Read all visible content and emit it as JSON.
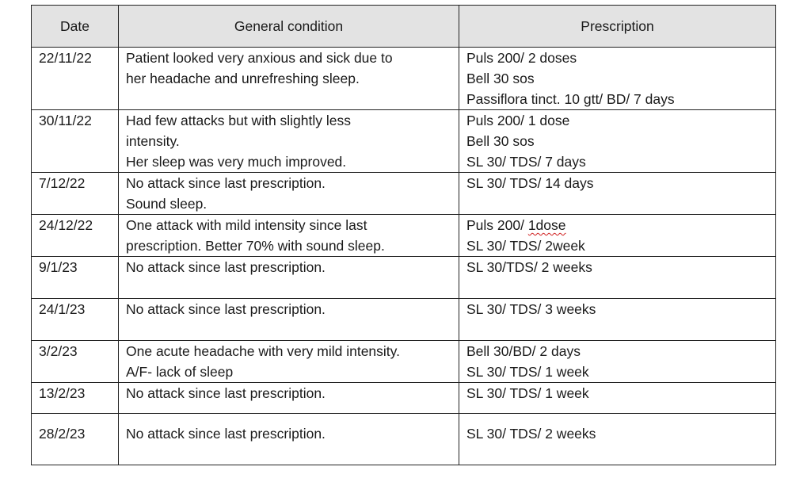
{
  "headers": {
    "date": "Date",
    "condition": "General condition",
    "prescription": "Prescription"
  },
  "rows": [
    {
      "date": "22/11/22",
      "condition": [
        "Patient looked very anxious and sick due to",
        "her headache and unrefreshing sleep."
      ],
      "prescription": [
        "Puls 200/ 2 doses",
        "Bell 30 sos",
        "Passiflora tinct. 10 gtt/ BD/ 7 days"
      ]
    },
    {
      "date": "30/11/22",
      "condition": [
        "Had few attacks but with slightly less",
        "intensity.",
        "Her sleep was very much improved."
      ],
      "prescription": [
        "Puls 200/ 1 dose",
        "Bell 30 sos",
        "SL 30/ TDS/ 7 days"
      ]
    },
    {
      "date": "7/12/22",
      "condition": [
        "No attack since last prescription.",
        "Sound sleep."
      ],
      "prescription": [
        "SL 30/ TDS/ 14 days"
      ]
    },
    {
      "date": "24/12/22",
      "condition": [
        "One attack with mild intensity since last",
        "prescription. Better 70% with sound sleep."
      ],
      "prescription_first_prefix": "Puls 200/ ",
      "prescription_first_flagged": "1dose",
      "prescription": [
        "SL 30/ TDS/ 2week"
      ]
    },
    {
      "date": "9/1/23",
      "condition": [
        "No attack since last prescription."
      ],
      "prescription": [
        "SL 30/TDS/ 2 weeks"
      ]
    },
    {
      "date": "24/1/23",
      "condition": [
        "No attack since last prescription."
      ],
      "prescription": [
        "SL 30/ TDS/ 3 weeks"
      ]
    },
    {
      "date": "3/2/23",
      "condition": [
        "One acute headache with very mild intensity.",
        "A/F- lack of sleep"
      ],
      "prescription": [
        "Bell 30/BD/ 2 days",
        "SL 30/ TDS/ 1 week"
      ]
    },
    {
      "date": "13/2/23",
      "condition": [
        "No attack since last prescription."
      ],
      "prescription": [
        "SL 30/ TDS/ 1 week"
      ]
    },
    {
      "date": "28/2/23",
      "condition": [
        "No attack since last prescription."
      ],
      "prescription": [
        "SL 30/ TDS/ 2 weeks"
      ]
    }
  ],
  "spellcheck_color": "#d02020",
  "header_background": "#e3e3e3"
}
